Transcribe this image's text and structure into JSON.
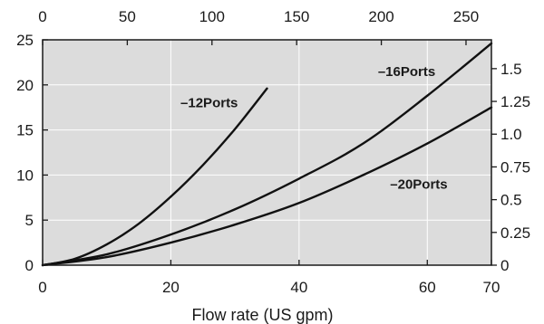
{
  "chart_data": {
    "type": "line",
    "title": "",
    "xlabel": "Flow rate (US gpm)",
    "ylabel": "",
    "x_bottom": {
      "range": [
        0,
        70
      ],
      "ticks": [
        0,
        20,
        40,
        60,
        70
      ],
      "tick_labels": [
        "0",
        "20",
        "40",
        "60",
        "70"
      ]
    },
    "x_top": {
      "range": [
        0,
        265
      ],
      "ticks": [
        0,
        50,
        100,
        150,
        200,
        250
      ],
      "tick_labels": [
        "0",
        "50",
        "100",
        "150",
        "200",
        "250"
      ]
    },
    "y_left": {
      "range": [
        0,
        25
      ],
      "ticks": [
        0,
        5,
        10,
        15,
        20,
        25
      ],
      "tick_labels": [
        "0",
        "5",
        "10",
        "15",
        "20",
        "25"
      ]
    },
    "y_right": {
      "range": [
        0,
        1.72
      ],
      "ticks": [
        0,
        0.25,
        0.5,
        0.75,
        1.0,
        1.25,
        1.5
      ],
      "tick_labels": [
        "0",
        "0.25",
        "0.5",
        "0.75",
        "1.0",
        "1.25",
        "1.5"
      ]
    },
    "grid": true,
    "background": "#dcdcdc",
    "line_color": "#111111",
    "series": [
      {
        "name": "12Ports",
        "label": "–12Ports",
        "x": [
          0,
          5,
          10,
          15,
          20,
          25,
          30,
          35
        ],
        "y": [
          0,
          0.7,
          2.3,
          4.6,
          7.6,
          11.1,
          15.1,
          19.6
        ]
      },
      {
        "name": "16Ports",
        "label": "–16Ports",
        "x": [
          0,
          10,
          20,
          30,
          40,
          50,
          60,
          70
        ],
        "y": [
          0,
          1.2,
          3.4,
          6.2,
          9.6,
          13.5,
          18.8,
          24.6
        ]
      },
      {
        "name": "20Ports",
        "label": "–20Ports",
        "x": [
          0,
          10,
          20,
          30,
          40,
          50,
          60,
          70
        ],
        "y": [
          0,
          0.9,
          2.5,
          4.5,
          6.9,
          10.0,
          13.5,
          17.5
        ]
      }
    ]
  }
}
